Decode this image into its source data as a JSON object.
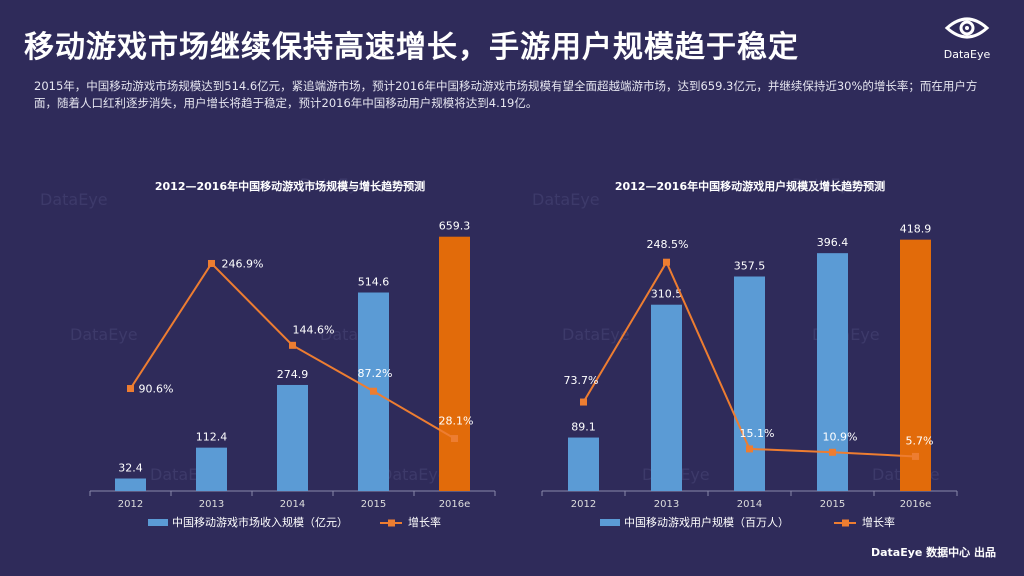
{
  "page": {
    "title": "移动游戏市场继续保持高速增长，手游用户规模趋于稳定",
    "description": "2015年，中国移动游戏市场规模达到514.6亿元，紧追端游市场，预计2016年中国移动游戏市场规模有望全面超越端游市场，达到659.3亿元，并继续保持近30%的增长率；而在用户方面，随着人口红利逐步消失，用户增长将趋于稳定，预计2016年中国移动用户规模将达到4.19亿。",
    "logo": "DataEye",
    "footer": "DataEye 数据中心 出品",
    "watermark": "DataEye"
  },
  "colors": {
    "bar": "#5b9bd5",
    "bar_forecast": "#e26b0a",
    "line": "#ed7d31",
    "background": "#2f2b5a"
  },
  "chart_data": [
    {
      "type": "bar",
      "title": "2012—2016年中国移动游戏市场规模与增长趋势预测",
      "categories": [
        "2012",
        "2013",
        "2014",
        "2015",
        "2016e"
      ],
      "series": [
        {
          "name": "中国移动游戏市场收入规模（亿元）",
          "type": "bar",
          "values": [
            32.4,
            112.4,
            274.9,
            514.6,
            659.3
          ],
          "labels": [
            "32.4",
            "112.4",
            "274.9",
            "514.6",
            "659.3"
          ]
        },
        {
          "name": "增长率",
          "type": "line",
          "values": [
            90.6,
            246.9,
            144.6,
            87.2,
            28.1
          ],
          "labels": [
            "90.6%",
            "246.9%",
            "144.6%",
            "87.2%",
            "28.1%"
          ]
        }
      ],
      "ylim_bar": [
        0,
        700
      ],
      "ylim_line": [
        0,
        300
      ]
    },
    {
      "type": "bar",
      "title": "2012—2016年中国移动游戏用户规模及增长趋势预测",
      "categories": [
        "2012",
        "2013",
        "2014",
        "2015",
        "2016e"
      ],
      "series": [
        {
          "name": "中国移动游戏用户规模（百万人）",
          "type": "bar",
          "values": [
            89.1,
            310.5,
            357.5,
            396.4,
            418.9
          ],
          "labels": [
            "89.1",
            "310.5",
            "357.5",
            "396.4",
            "418.9"
          ]
        },
        {
          "name": "增长率",
          "type": "line",
          "values": [
            73.7,
            248.5,
            15.1,
            10.9,
            5.7
          ],
          "labels": [
            "73.7%",
            "248.5%",
            "15.1%",
            "10.9%",
            "5.7%"
          ]
        }
      ],
      "ylim_bar": [
        0,
        450
      ],
      "ylim_line": [
        0,
        300
      ]
    }
  ]
}
